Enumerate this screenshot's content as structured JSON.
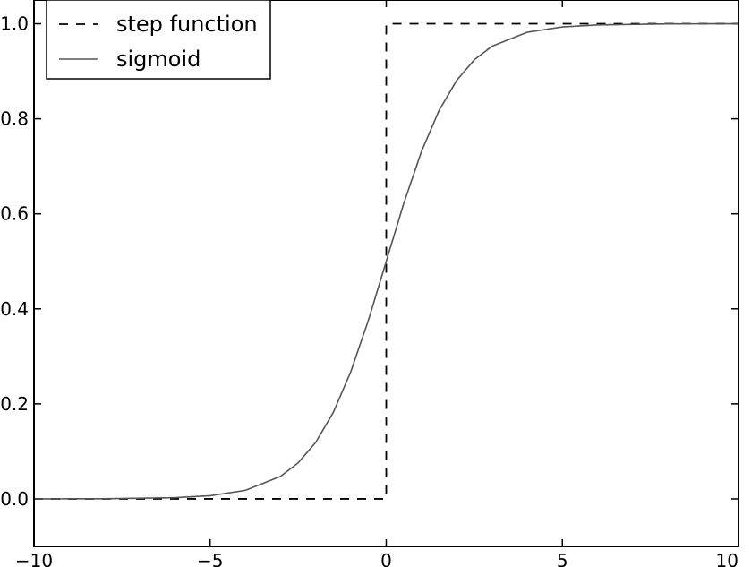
{
  "chart_data": {
    "type": "line",
    "title": "",
    "xlabel": "",
    "ylabel": "",
    "xlim": [
      -10,
      10
    ],
    "ylim": [
      -0.1,
      1.05
    ],
    "xticks": [
      -10,
      -5,
      0,
      5,
      10
    ],
    "xtick_labels": [
      "−10",
      "−5",
      "0",
      "5",
      "10"
    ],
    "yticks": [
      0.0,
      0.2,
      0.4,
      0.6,
      0.8,
      1.0
    ],
    "ytick_labels": [
      "0.0",
      "0.2",
      "0.4",
      "0.6",
      "0.8",
      "1.0"
    ],
    "grid": false,
    "legend_position": "top-left",
    "series": [
      {
        "name": "step function",
        "style": "dashed",
        "color": "#000000",
        "x": [
          -10,
          0,
          0,
          10
        ],
        "y": [
          0,
          0,
          1,
          1
        ]
      },
      {
        "name": "sigmoid",
        "style": "solid",
        "color": "#555555",
        "x": [
          -10,
          -8,
          -6,
          -5,
          -4,
          -3,
          -2.5,
          -2,
          -1.5,
          -1,
          -0.5,
          0,
          0.5,
          1,
          1.5,
          2,
          2.5,
          3,
          4,
          5,
          6,
          8,
          10
        ],
        "y": [
          4.54e-05,
          0.000335,
          0.00247,
          0.00669,
          0.018,
          0.0474,
          0.0759,
          0.1192,
          0.1824,
          0.2689,
          0.3775,
          0.5,
          0.6225,
          0.7311,
          0.8176,
          0.8808,
          0.9241,
          0.9526,
          0.982,
          0.9933,
          0.9975,
          0.9997,
          0.99995
        ]
      }
    ]
  }
}
